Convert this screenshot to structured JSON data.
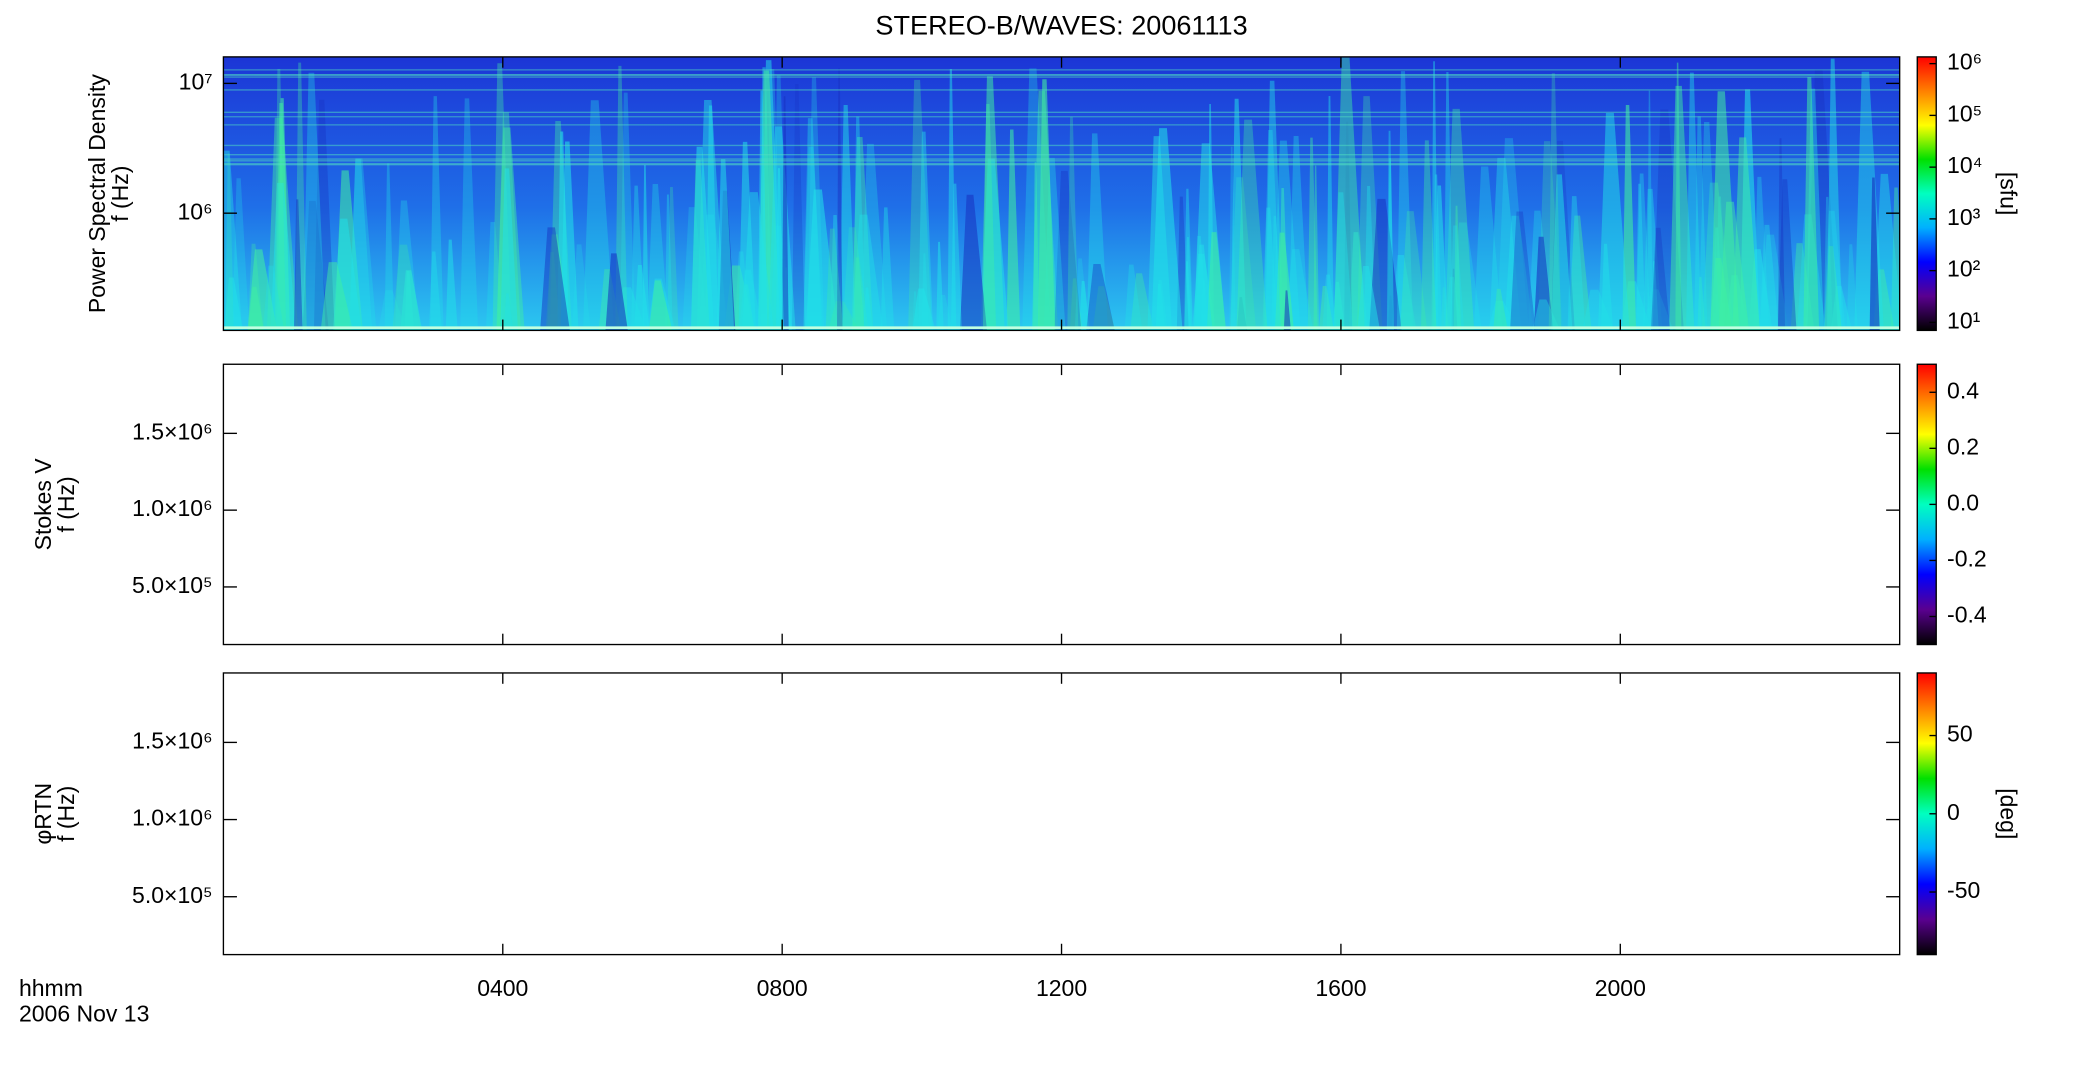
{
  "title": "STEREO-B/WAVES: 20061113",
  "time_label": "hhmm",
  "date_label": "2006 Nov 13",
  "colormap": [
    "#000000",
    "#5a0090",
    "#0000ff",
    "#00b0ff",
    "#00ffc0",
    "#00e000",
    "#ffff00",
    "#ff8000",
    "#ff0000"
  ],
  "xlim": [
    0,
    24
  ],
  "xticks": [
    {
      "value": 4,
      "label": "0400"
    },
    {
      "value": 8,
      "label": "0800"
    },
    {
      "value": 12,
      "label": "1200"
    },
    {
      "value": 16,
      "label": "1600"
    },
    {
      "value": 20,
      "label": "2000"
    }
  ],
  "chart_data": [
    {
      "type": "heatmap",
      "ylabel": [
        "Power Spectral Density",
        "f (Hz)"
      ],
      "ylog": true,
      "ylim": [
        125000,
        16000000
      ],
      "yticks": [
        {
          "value": 1000000,
          "label": "10⁶"
        },
        {
          "value": 10000000,
          "label": "10⁷"
        }
      ],
      "colorbar": {
        "log": true,
        "lim": [
          7,
          1350000
        ],
        "label": "[sfu]",
        "ticks": [
          {
            "value": 10,
            "label": "10¹"
          },
          {
            "value": 100,
            "label": "10²"
          },
          {
            "value": 1000,
            "label": "10³"
          },
          {
            "value": 10000,
            "label": "10⁴"
          },
          {
            "value": 100000,
            "label": "10⁵"
          },
          {
            "value": 1000000,
            "label": "10⁶"
          }
        ]
      }
    },
    {
      "type": "heatmap",
      "ylabel": [
        "Stokes V",
        "f (Hz)"
      ],
      "ylog": false,
      "ylim": [
        125000,
        1950000
      ],
      "yticks": [
        {
          "value": 500000,
          "label": "5.0×10⁵"
        },
        {
          "value": 1000000,
          "label": "1.0×10⁶"
        },
        {
          "value": 1500000,
          "label": "1.5×10⁶"
        }
      ],
      "colorbar": {
        "log": false,
        "lim": [
          -0.5,
          0.5
        ],
        "ticks": [
          {
            "value": -0.4,
            "label": "-0.4"
          },
          {
            "value": -0.2,
            "label": "-0.2"
          },
          {
            "value": 0,
            "label": "0.0"
          },
          {
            "value": 0.2,
            "label": "0.2"
          },
          {
            "value": 0.4,
            "label": "0.4"
          }
        ]
      }
    },
    {
      "type": "heatmap",
      "ylabel": [
        "φRTN",
        "f (Hz)"
      ],
      "ylog": false,
      "ylim": [
        125000,
        1950000
      ],
      "yticks": [
        {
          "value": 500000,
          "label": "5.0×10⁵"
        },
        {
          "value": 1000000,
          "label": "1.0×10⁶"
        },
        {
          "value": 1500000,
          "label": "1.5×10⁶"
        }
      ],
      "colorbar": {
        "log": false,
        "lim": [
          -90,
          90
        ],
        "label": "[deg]",
        "ticks": [
          -50,
          0,
          50
        ]
      }
    }
  ]
}
